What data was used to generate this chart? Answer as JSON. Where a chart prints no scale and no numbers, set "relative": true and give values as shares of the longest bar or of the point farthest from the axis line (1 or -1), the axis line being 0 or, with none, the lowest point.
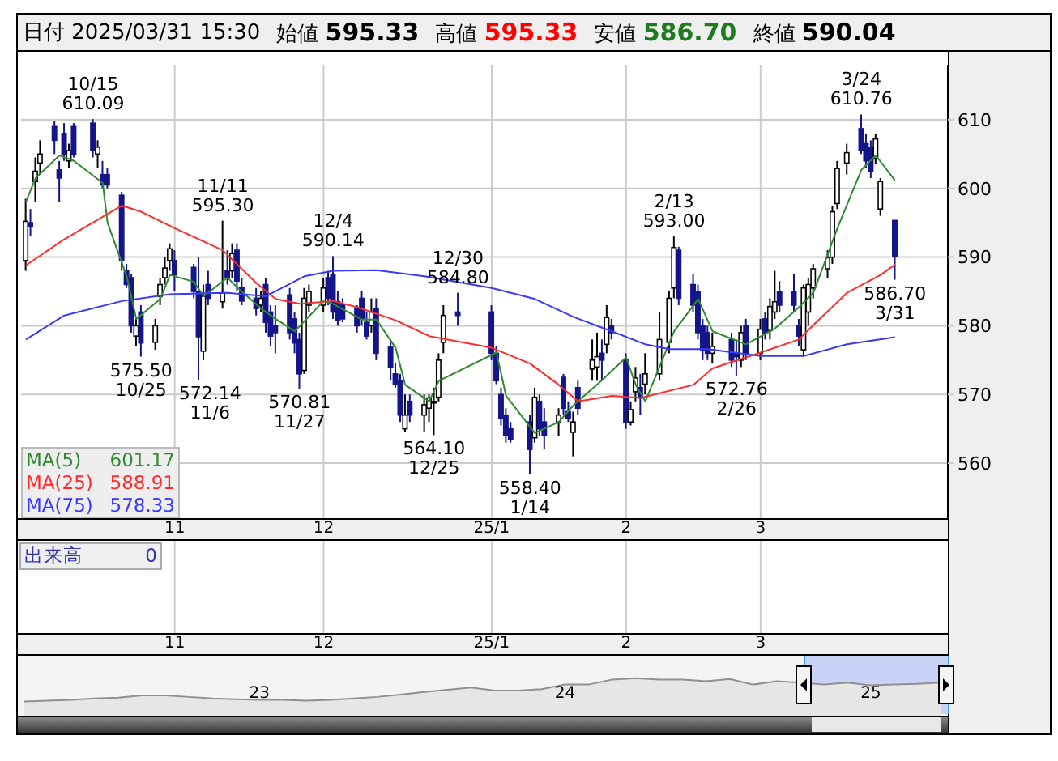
{
  "chart_data": [
    {
      "type": "candlestick",
      "title": "日付 2025/03/31 15:30",
      "colors": [
        "#ffffff",
        "#15158a",
        "#ffffff",
        "#ffffff",
        "#15158a",
        "#15158a",
        "#15158a",
        "#ffffff",
        "#15158a",
        "#15158a",
        "#ffffff",
        "#15158a",
        "#15158a",
        "#15158a",
        "#15158a",
        "#15158a",
        "#ffffff",
        "#15158a",
        "#ffffff",
        "#ffffff",
        "#ffffff",
        "#ffffff",
        "#15158a",
        "#15158a",
        "#15158a",
        "#ffffff",
        "#15158a",
        "#ffffff",
        "#15158a",
        "#ffffff",
        "#15158a",
        "#15158a",
        "#15158a",
        "#ffffff",
        "#15158a",
        "#15158a",
        "#15158a",
        "#15158a",
        "#15158a",
        "#15158a",
        "#ffffff",
        "#ffffff",
        "#ffffff",
        "#15158a",
        "#15158a",
        "#15158a",
        "#15158a",
        "#15158a",
        "#15158a",
        "#15158a",
        "#ffffff",
        "#15158a",
        "#15158a",
        "#15158a",
        "#15158a",
        "#ffffff",
        "#15158a",
        "#ffffff",
        "#ffffff",
        "#ffffff",
        "#ffffff",
        "#ffffff",
        "#15158a",
        "#15158a",
        "#15158a",
        "#15158a",
        "#15158a",
        "#15158a",
        "#15158a",
        "#ffffff",
        "#15158a",
        "#15158a",
        "#ffffff",
        "#15158a",
        "#15158a",
        "#ffffff",
        "#15158a",
        "#ffffff",
        "#ffffff",
        "#15158a",
        "#ffffff",
        "#15158a",
        "#15158a",
        "#ffffff",
        "#ffffff",
        "#15158a",
        "#ffffff",
        "#ffffff",
        "#ffffff",
        "#ffffff",
        "#15158a",
        "#15158a",
        "#15158a",
        "#15158a",
        "#15158a",
        "#ffffff",
        "#15158a",
        "#15158a",
        "#ffffff",
        "#15158a",
        "#ffffff",
        "#15158a",
        "#ffffff",
        "#ffffff",
        "#15158a",
        "#15158a",
        "#15158a",
        "#ffffff",
        "#ffffff",
        "#ffffff",
        "#ffffff",
        "#ffffff",
        "#ffffff",
        "#ffffff",
        "#15158a",
        "#15158a",
        "#15158a",
        "#ffffff",
        "#ffffff",
        "#15158a"
      ],
      "x": [
        "2024-10-01",
        "2024-10-02",
        "2024-10-03",
        "2024-10-04",
        "2024-10-07",
        "2024-10-08",
        "2024-10-09",
        "2024-10-10",
        "2024-10-11",
        "2024-10-15",
        "2024-10-16",
        "2024-10-17",
        "2024-10-18",
        "2024-10-21",
        "2024-10-22",
        "2024-10-23",
        "2024-10-24",
        "2024-10-25",
        "2024-10-28",
        "2024-10-29",
        "2024-10-30",
        "2024-10-31",
        "2024-11-01",
        "2024-11-05",
        "2024-11-06",
        "2024-11-07",
        "2024-11-08",
        "2024-11-11",
        "2024-11-12",
        "2024-11-13",
        "2024-11-14",
        "2024-11-15",
        "2024-11-18",
        "2024-11-19",
        "2024-11-20",
        "2024-11-21",
        "2024-11-22",
        "2024-11-25",
        "2024-11-26",
        "2024-11-27",
        "2024-11-28",
        "2024-11-29",
        "2024-12-02",
        "2024-12-03",
        "2024-12-04",
        "2024-12-05",
        "2024-12-06",
        "2024-12-09",
        "2024-12-10",
        "2024-12-11",
        "2024-12-12",
        "2024-12-13",
        "2024-12-16",
        "2024-12-17",
        "2024-12-18",
        "2024-12-19",
        "2024-12-20",
        "2024-12-23",
        "2024-12-24",
        "2024-12-25",
        "2024-12-26",
        "2024-12-27",
        "2024-12-30",
        "2025-01-06",
        "2025-01-07",
        "2025-01-08",
        "2025-01-09",
        "2025-01-10",
        "2025-01-14",
        "2025-01-15",
        "2025-01-16",
        "2025-01-17",
        "2025-01-20",
        "2025-01-21",
        "2025-01-22",
        "2025-01-23",
        "2025-01-24",
        "2025-01-27",
        "2025-01-28",
        "2025-01-29",
        "2025-01-30",
        "2025-01-31",
        "2025-02-03",
        "2025-02-04",
        "2025-02-05",
        "2025-02-06",
        "2025-02-07",
        "2025-02-10",
        "2025-02-12",
        "2025-02-13",
        "2025-02-14",
        "2025-02-17",
        "2025-02-18",
        "2025-02-19",
        "2025-02-20",
        "2025-02-21",
        "2025-02-25",
        "2025-02-26",
        "2025-02-27",
        "2025-02-28",
        "2025-03-03",
        "2025-03-04",
        "2025-03-05",
        "2025-03-06",
        "2025-03-07",
        "2025-03-10",
        "2025-03-11",
        "2025-03-12",
        "2025-03-13",
        "2025-03-14",
        "2025-03-17",
        "2025-03-18",
        "2025-03-19",
        "2025-03-21",
        "2025-03-24",
        "2025-03-25",
        "2025-03-26",
        "2025-03-27",
        "2025-03-28",
        "2025-03-31"
      ],
      "ohlc": [
        [
          589.5,
          598.5,
          588,
          595.2
        ],
        [
          595,
          597,
          593,
          594.5
        ],
        [
          601,
          604.5,
          598,
          602.5
        ],
        [
          603.7,
          607,
          602,
          605
        ],
        [
          609,
          609.8,
          605,
          607
        ],
        [
          602.7,
          604,
          598,
          601.5
        ],
        [
          608,
          609.5,
          604,
          605
        ],
        [
          604,
          606.5,
          603,
          605.5
        ],
        [
          609,
          609.5,
          604.5,
          605
        ],
        [
          609.5,
          610.09,
          604.5,
          605.5
        ],
        [
          605,
          607,
          603,
          606
        ],
        [
          602,
          604,
          600,
          600.5
        ],
        [
          602,
          603,
          600,
          600.5
        ],
        [
          599,
          599.5,
          588,
          589.5
        ],
        [
          588,
          589,
          585.5,
          586
        ],
        [
          587,
          587.5,
          579,
          580
        ],
        [
          578.5,
          581,
          577,
          580
        ],
        [
          582,
          583,
          575.5,
          577.5
        ],
        [
          577.6,
          581,
          576.5,
          580
        ],
        [
          584.3,
          587,
          583,
          586
        ],
        [
          587,
          590,
          586,
          588.4
        ],
        [
          589.5,
          592,
          588,
          591.2
        ],
        [
          589.5,
          591,
          585,
          587.4
        ],
        [
          588.5,
          589,
          584,
          585
        ],
        [
          585,
          590,
          572.14,
          578.4
        ],
        [
          576.3,
          586,
          575,
          584.3
        ],
        [
          586,
          588,
          583,
          584
        ],
        [
          583.5,
          595.3,
          582.5,
          584.8
        ],
        [
          588,
          591,
          586,
          587
        ],
        [
          588,
          592,
          587,
          590.5
        ],
        [
          591,
          592,
          585,
          586.5
        ],
        [
          585.5,
          587,
          583,
          583.6
        ],
        [
          584,
          585.5,
          581.5,
          582.5
        ],
        [
          583,
          585,
          582,
          584
        ],
        [
          586,
          587,
          579,
          580.5
        ],
        [
          582,
          583,
          577,
          578.5
        ],
        [
          580,
          583,
          576,
          579
        ],
        [
          584.5,
          585.5,
          578,
          579
        ],
        [
          581,
          582,
          576,
          577.5
        ],
        [
          578,
          579,
          570.81,
          573
        ],
        [
          573.5,
          585.5,
          573,
          584
        ],
        [
          583,
          586,
          582,
          585
        ],
        [
          583,
          587,
          582,
          585.5
        ],
        [
          587,
          588,
          583,
          584
        ],
        [
          587.5,
          590.14,
          581,
          582
        ],
        [
          583.5,
          585,
          580,
          580.8
        ],
        [
          583,
          584,
          580.5,
          581
        ],
        [
          582.5,
          583,
          579,
          580
        ],
        [
          584,
          585,
          580,
          581
        ],
        [
          580.5,
          582,
          578,
          578.5
        ],
        [
          580,
          584,
          579,
          582
        ],
        [
          582.5,
          584,
          575,
          576
        ],
        [
          577,
          578,
          572,
          574
        ],
        [
          573,
          574.5,
          571,
          571.5
        ],
        [
          572,
          573,
          566,
          567
        ],
        [
          565,
          570,
          564.5,
          567
        ],
        [
          569,
          570,
          566,
          567
        ],
        [
          567,
          570,
          564.5,
          568.5
        ],
        [
          568,
          570,
          566,
          569.5
        ],
        [
          569,
          571,
          564.1,
          569
        ],
        [
          569.6,
          576,
          569,
          575
        ],
        [
          577.6,
          583,
          576,
          581.5
        ],
        [
          582,
          584.8,
          580,
          581.5
        ],
        [
          582,
          583,
          575,
          576
        ],
        [
          576,
          577,
          571.5,
          572
        ],
        [
          570,
          571,
          565.5,
          566.5
        ],
        [
          567,
          568,
          563,
          564
        ],
        [
          565,
          566,
          563,
          563.5
        ],
        [
          566,
          567,
          558.4,
          562
        ],
        [
          563.7,
          571,
          563,
          569.6
        ],
        [
          569,
          570,
          564,
          565
        ],
        [
          566,
          568,
          562,
          564
        ],
        [
          566,
          568,
          564,
          567
        ],
        [
          572.5,
          573,
          567,
          568
        ],
        [
          567.5,
          569,
          566,
          566.5
        ],
        [
          564.5,
          567.5,
          561,
          566
        ],
        [
          571,
          572,
          567,
          568
        ],
        [
          573.7,
          578,
          572,
          575
        ],
        [
          574,
          579,
          572,
          575.5
        ],
        [
          576,
          578,
          572,
          575
        ],
        [
          577.3,
          583,
          576,
          581.2
        ],
        [
          580,
          581,
          578,
          579
        ],
        [
          575,
          576,
          565,
          566
        ],
        [
          566,
          569,
          565.5,
          567.8
        ],
        [
          570.4,
          574,
          569,
          572.4
        ],
        [
          571,
          573,
          567,
          569.5
        ],
        [
          571.5,
          576,
          570,
          573
        ],
        [
          573,
          582,
          572,
          578
        ],
        [
          577.6,
          585,
          576,
          584
        ],
        [
          585.5,
          593,
          584,
          591.4
        ],
        [
          591,
          591.5,
          583,
          584
        ],
        [
          586,
          587.5,
          582,
          583
        ],
        [
          585,
          586,
          578,
          579
        ],
        [
          580,
          581,
          575,
          576.5
        ],
        [
          579,
          580,
          575,
          576
        ],
        [
          576,
          579,
          574.5,
          577
        ],
        [
          578,
          579,
          574,
          575
        ],
        [
          576,
          578,
          572.76,
          575.5
        ],
        [
          575,
          580,
          574,
          579
        ],
        [
          580,
          581,
          575,
          576
        ],
        [
          576,
          581,
          575,
          579.5
        ],
        [
          581,
          582,
          578,
          579
        ],
        [
          579.3,
          584,
          578,
          582.8
        ],
        [
          582,
          588,
          581,
          583.5
        ],
        [
          585,
          586.5,
          582,
          583
        ],
        [
          585,
          587.5,
          582,
          583
        ],
        [
          580,
          581,
          577,
          578.5
        ],
        [
          576.5,
          586,
          575.5,
          585.5
        ],
        [
          582,
          587,
          580,
          586
        ],
        [
          585.5,
          589,
          584,
          588.3
        ],
        [
          588.3,
          591,
          587,
          589.9
        ],
        [
          590,
          597.5,
          589,
          596.6
        ],
        [
          597.8,
          604,
          597,
          602.9
        ],
        [
          603.7,
          606.5,
          602,
          605.2
        ],
        [
          608.7,
          610.76,
          605,
          605.5
        ],
        [
          606.5,
          608,
          603,
          604
        ],
        [
          606,
          607,
          601.5,
          602.5
        ],
        [
          604.4,
          608,
          603.5,
          607.2
        ],
        [
          597,
          601.5,
          596,
          601
        ],
        [
          595.33,
          595.33,
          586.7,
          590.04
        ]
      ],
      "series": [
        {
          "name": "MA(5)",
          "type": "line",
          "color": "#2f8a2f",
          "x": [
            "2024-10-01",
            "2024-10-03",
            "2024-10-08",
            "2024-10-11",
            "2024-10-17",
            "2024-10-18",
            "2024-10-22",
            "2024-10-24",
            "2024-10-29",
            "2024-10-31",
            "2024-11-05",
            "2024-11-07",
            "2024-11-12",
            "2024-11-14",
            "2024-11-19",
            "2024-11-22",
            "2024-11-26",
            "2024-12-02",
            "2024-12-04",
            "2024-12-10",
            "2024-12-13",
            "2024-12-17",
            "2024-12-19",
            "2024-12-24",
            "2024-12-26",
            "2025-01-07",
            "2025-01-09",
            "2025-01-15",
            "2025-01-20",
            "2025-01-23",
            "2025-01-29",
            "2025-02-03",
            "2025-02-05",
            "2025-02-07",
            "2025-02-13",
            "2025-02-18",
            "2025-02-21",
            "2025-02-28",
            "2025-03-06",
            "2025-03-11",
            "2025-03-14",
            "2025-03-19",
            "2025-03-24",
            "2025-03-27",
            "2025-03-31"
          ],
          "values": [
            598,
            601.5,
            604.8,
            604,
            600.8,
            595,
            587.2,
            581,
            583.9,
            587.4,
            586.4,
            584.3,
            587,
            585.6,
            582.5,
            581,
            579.2,
            583.6,
            583.2,
            580.9,
            580.9,
            576.8,
            571.4,
            569,
            572,
            576.1,
            569.8,
            564.4,
            566,
            568.4,
            572.1,
            575.4,
            571.4,
            569,
            579.2,
            583.9,
            579.2,
            577.3,
            579.6,
            582.7,
            584.8,
            594.2,
            602.7,
            604.8,
            601.17
          ]
        },
        {
          "name": "MA(25)",
          "type": "line",
          "color": "#ff2a2a",
          "x": [
            "2024-10-01",
            "2024-10-09",
            "2024-10-21",
            "2024-10-25",
            "2024-11-01",
            "2024-11-11",
            "2024-11-18",
            "2024-11-22",
            "2024-11-27",
            "2024-12-04",
            "2024-12-09",
            "2024-12-17",
            "2024-12-24",
            "2025-01-06",
            "2025-01-14",
            "2025-01-20",
            "2025-01-24",
            "2025-01-31",
            "2025-02-06",
            "2025-02-17",
            "2025-02-21",
            "2025-03-03",
            "2025-03-11",
            "2025-03-14",
            "2025-03-21",
            "2025-03-28",
            "2025-03-31"
          ],
          "values": [
            588.8,
            592.6,
            597.5,
            596.6,
            594.2,
            591,
            586.2,
            583.9,
            583.2,
            583.6,
            582.7,
            580.8,
            578.5,
            576.8,
            574.5,
            571.4,
            569,
            569.8,
            569.5,
            571.4,
            573.8,
            576.1,
            578,
            580.1,
            584.8,
            587.4,
            588.91
          ]
        },
        {
          "name": "MA(75)",
          "type": "line",
          "color": "#3838ff",
          "x": [
            "2024-10-01",
            "2024-10-09",
            "2024-10-21",
            "2024-10-31",
            "2024-11-12",
            "2024-11-20",
            "2024-11-28",
            "2024-12-04",
            "2024-12-13",
            "2024-12-23",
            "2025-01-06",
            "2025-01-15",
            "2025-01-23",
            "2025-01-31",
            "2025-02-07",
            "2025-02-12",
            "2025-02-20",
            "2025-03-03",
            "2025-03-12",
            "2025-03-21",
            "2025-03-31"
          ],
          "values": [
            578,
            581.5,
            583.6,
            584.6,
            584.8,
            584.3,
            587.2,
            588,
            588.1,
            587.2,
            585.5,
            583.9,
            581.3,
            579.2,
            577.3,
            576.6,
            576.6,
            575.6,
            575.6,
            577.3,
            578.33
          ]
        }
      ],
      "xlim": [
        "2024-09-30",
        "2025-04-11"
      ],
      "ylim": [
        552,
        618
      ],
      "yticks": [
        560,
        570,
        580,
        590,
        600,
        610
      ],
      "xticks": [
        {
          "value": "2024-11-01",
          "label": "11"
        },
        {
          "value": "2024-12-02",
          "label": "12"
        },
        {
          "value": "2025-01-06",
          "label": "25/1"
        },
        {
          "value": "2025-02-03",
          "label": "2"
        },
        {
          "value": "2025-03-03",
          "label": "3"
        }
      ],
      "grid": true,
      "legend": "bottom left",
      "annotations": [
        "始値 595.33",
        "高値 595.33",
        "安値 586.70",
        "終値 590.04",
        "出来高 0",
        "601.17",
        "588.91",
        "578.33",
        {
          "text": "10/15\n610.09",
          "x": "2024-10-15",
          "y": 610.09
        },
        {
          "text": "575.50\n10/25",
          "x": "2024-10-25",
          "y": 575.5
        },
        {
          "text": "572.14\n11/6",
          "x": "2024-11-06",
          "y": 572.14
        },
        {
          "text": "11/11\n595.30",
          "x": "2024-11-11",
          "y": 595.3
        },
        {
          "text": "570.81\n11/27",
          "x": "2024-11-27",
          "y": 570.81
        },
        {
          "text": "12/4\n590.14",
          "x": "2024-12-04",
          "y": 590.14
        },
        {
          "text": "564.10\n12/25",
          "x": "2024-12-25",
          "y": 564.1
        },
        {
          "text": "12/30\n584.80",
          "x": "2024-12-30",
          "y": 584.8
        },
        {
          "text": "558.40\n1/14",
          "x": "2025-01-14",
          "y": 558.4
        },
        {
          "text": "2/13\n593.00",
          "x": "2025-02-13",
          "y": 593
        },
        {
          "text": "572.76\n2/26",
          "x": "2025-02-26",
          "y": 572.76
        },
        {
          "text": "3/24\n610.76",
          "x": "2025-03-24",
          "y": 610.76
        },
        {
          "text": "586.70\n3/31",
          "x": "2025-03-31",
          "y": 586.7
        }
      ]
    },
    {
      "type": "area",
      "relative": true,
      "color": "#909090",
      "categories": [
        null,
        null,
        null,
        null,
        null,
        null,
        null,
        null,
        null,
        null,
        "23",
        null,
        null,
        null,
        null,
        null,
        null,
        null,
        null,
        null,
        null,
        null,
        null,
        "24",
        null,
        null,
        null,
        null,
        null,
        null,
        null,
        null,
        null,
        null,
        null,
        null,
        "25",
        null,
        null,
        null
      ],
      "values": [
        0.38,
        0.4,
        0.42,
        0.46,
        0.48,
        0.54,
        0.54,
        0.5,
        0.46,
        0.44,
        0.42,
        0.42,
        0.4,
        0.42,
        0.46,
        0.5,
        0.56,
        0.63,
        0.69,
        0.75,
        0.67,
        0.67,
        0.71,
        0.83,
        0.83,
        0.96,
        1,
        0.96,
        0.96,
        0.92,
        0.98,
        0.83,
        0.92,
        0.88,
        0.83,
        0.88,
        0.81,
        0.83,
        0.85,
        0.88
      ]
    }
  ]
}
